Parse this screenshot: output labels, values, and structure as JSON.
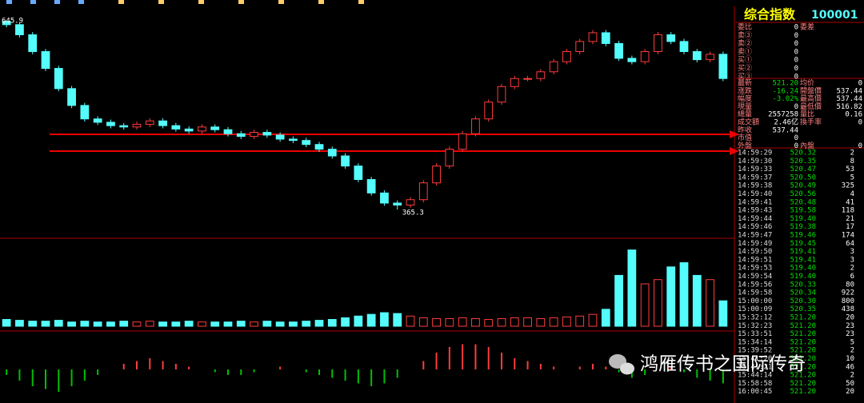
{
  "chart_data": [
    {
      "type": "candlestick",
      "up_color": "#ff3c3c",
      "down_color": "#54fcfc",
      "ylim": [
        350,
        660
      ],
      "open": [
        645,
        640,
        625,
        600,
        575,
        545,
        520,
        500,
        495,
        490,
        488,
        492,
        497,
        490,
        485,
        482,
        488,
        484,
        478,
        474,
        480,
        476,
        470,
        468,
        462,
        455,
        445,
        430,
        410,
        390,
        375,
        372,
        380,
        405,
        430,
        455,
        478,
        500,
        525,
        548,
        560,
        560,
        570,
        585,
        600,
        615,
        628,
        612,
        590,
        585,
        600,
        625,
        615,
        600,
        588,
        596
      ],
      "high": [
        645.9,
        644,
        629,
        604,
        579,
        549,
        524,
        504,
        499,
        494,
        496,
        501,
        501,
        494,
        489,
        492,
        492,
        488,
        482,
        484,
        484,
        480,
        474,
        472,
        466,
        459,
        449,
        434,
        414,
        394,
        379,
        384,
        409,
        434,
        459,
        482,
        504,
        529,
        552,
        564,
        564,
        574,
        589,
        604,
        619,
        632,
        632,
        616,
        594,
        604,
        629,
        629,
        619,
        604,
        600,
        600
      ],
      "low": [
        636,
        621,
        596,
        571,
        541,
        516,
        496,
        491,
        486,
        484,
        484,
        488,
        486,
        481,
        478,
        478,
        480,
        474,
        470,
        470,
        472,
        466,
        464,
        458,
        451,
        441,
        426,
        406,
        386,
        371,
        365.3,
        368,
        376,
        401,
        426,
        451,
        474,
        496,
        521,
        544,
        556,
        556,
        566,
        581,
        596,
        611,
        608,
        586,
        581,
        581,
        596,
        611,
        596,
        584,
        584,
        556
      ],
      "close": [
        640,
        625,
        600,
        575,
        545,
        520,
        500,
        495,
        490,
        488,
        492,
        497,
        490,
        485,
        482,
        488,
        484,
        478,
        474,
        480,
        476,
        470,
        468,
        462,
        455,
        445,
        430,
        410,
        390,
        375,
        372,
        380,
        405,
        430,
        455,
        478,
        500,
        525,
        548,
        560,
        560,
        570,
        585,
        600,
        615,
        628,
        612,
        590,
        585,
        600,
        625,
        615,
        600,
        588,
        596,
        560
      ]
    },
    {
      "type": "bar",
      "ylim": [
        0,
        100
      ],
      "values": [
        8,
        7,
        6,
        6,
        7,
        5,
        6,
        5,
        5,
        6,
        5,
        6,
        5,
        5,
        6,
        5,
        5,
        5,
        6,
        5,
        6,
        5,
        5,
        6,
        7,
        8,
        10,
        12,
        14,
        16,
        15,
        12,
        10,
        9,
        9,
        10,
        9,
        8,
        9,
        10,
        10,
        9,
        10,
        11,
        12,
        14,
        20,
        60,
        90,
        50,
        55,
        70,
        75,
        60,
        55,
        30
      ]
    },
    {
      "type": "histogram-bar",
      "positive_color": "#ff3c3c",
      "negative_color": "#00c000",
      "ylim": [
        -12,
        12
      ],
      "values": [
        -2,
        -4,
        -6,
        -7,
        -8,
        -6,
        -4,
        -2,
        0,
        2,
        3,
        4,
        3,
        2,
        1,
        0,
        -1,
        -2,
        -2,
        -1,
        0,
        1,
        0,
        -1,
        -2,
        -3,
        -4,
        -5,
        -6,
        -5,
        -3,
        0,
        3,
        6,
        8,
        9,
        9,
        8,
        6,
        4,
        3,
        2,
        1,
        0,
        1,
        2,
        1,
        -1,
        -3,
        -2,
        0,
        1,
        -1,
        -3,
        -4,
        -5
      ]
    }
  ],
  "quote_panel": {
    "title": "综合指数",
    "code": "100001",
    "order_rows": [
      {
        "label": "委比",
        "value": "0",
        "label2": "委差"
      },
      {
        "label": "卖③",
        "value": "0"
      },
      {
        "label": "卖②",
        "value": "0"
      },
      {
        "label": "卖①",
        "value": "0"
      },
      {
        "label": "买①",
        "value": "0"
      },
      {
        "label": "买②",
        "value": "0"
      },
      {
        "label": "买③",
        "value": "0"
      }
    ],
    "stat_rows": [
      {
        "label": "最新",
        "value": "521.20",
        "label2": "均价",
        "value2": "0"
      },
      {
        "label": "涨跌",
        "value": "-16.24",
        "label2": "開盤價",
        "value2": "537.44"
      },
      {
        "label": "幅度",
        "value": "-3.02%",
        "label2": "最高價",
        "value2": "537.44"
      },
      {
        "label": "現量",
        "value": "0",
        "label2": "最低價",
        "value2": "516.82"
      },
      {
        "label": "總量",
        "value": "2557258",
        "label2": "量比",
        "value2": "0.16"
      },
      {
        "label": "成交額",
        "value": "2.46亿",
        "label2": "換手率",
        "value2": "0"
      },
      {
        "label": "昨收",
        "value": "537.44"
      },
      {
        "label": "市值",
        "value": "0"
      },
      {
        "label": "外盤",
        "value": "0",
        "label2": "內盤",
        "value2": "0"
      }
    ],
    "trades": [
      [
        "14:59:29",
        "520.32",
        "2"
      ],
      [
        "14:59:30",
        "520.35",
        "8"
      ],
      [
        "14:59:33",
        "520.47",
        "53"
      ],
      [
        "14:59:37",
        "520.50",
        "5"
      ],
      [
        "14:59:38",
        "520.49",
        "325"
      ],
      [
        "14:59:40",
        "520.56",
        "4"
      ],
      [
        "14:59:41",
        "520.48",
        "41"
      ],
      [
        "14:59:43",
        "519.58",
        "118"
      ],
      [
        "14:59:44",
        "519.40",
        "21"
      ],
      [
        "14:59:46",
        "519.38",
        "17"
      ],
      [
        "14:59:47",
        "519.46",
        "174"
      ],
      [
        "14:59:49",
        "519.45",
        "64"
      ],
      [
        "14:59:50",
        "519.41",
        "3"
      ],
      [
        "14:59:51",
        "519.41",
        "3"
      ],
      [
        "14:59:53",
        "519.40",
        "2"
      ],
      [
        "14:59:54",
        "519.40",
        "6"
      ],
      [
        "14:59:56",
        "520.33",
        "80"
      ],
      [
        "14:59:58",
        "520.34",
        "922"
      ],
      [
        "15:00:00",
        "520.30",
        "800"
      ],
      [
        "15:00:09",
        "520.35",
        "438"
      ],
      [
        "15:32:12",
        "521.20",
        "20"
      ],
      [
        "15:32:23",
        "521.20",
        "23"
      ],
      [
        "15:33:51",
        "521.20",
        "23"
      ],
      [
        "15:34:14",
        "521.20",
        "5"
      ],
      [
        "15:39:52",
        "521.20",
        "2"
      ],
      [
        "15:41:20",
        "521.20",
        "10"
      ],
      [
        "15:41:21",
        "521.20",
        "46"
      ],
      [
        "15:44:14",
        "521.20",
        "2"
      ],
      [
        "15:58:58",
        "521.20",
        "50"
      ],
      [
        "16:00:45",
        "521.20",
        "20"
      ]
    ]
  },
  "watermark": "鸿雁传书之国际传奇"
}
